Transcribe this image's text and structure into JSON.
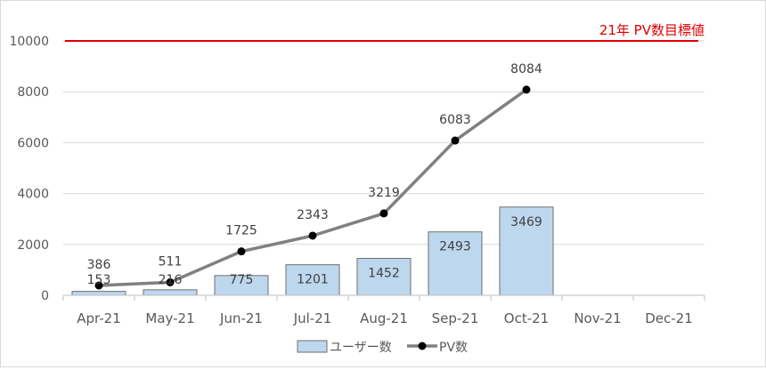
{
  "chart_data": {
    "type": "bar",
    "categories": [
      "Apr-21",
      "May-21",
      "Jun-21",
      "Jul-21",
      "Aug-21",
      "Sep-21",
      "Oct-21",
      "Nov-21",
      "Dec-21"
    ],
    "series": [
      {
        "name": "ユーザー数",
        "kind": "bar",
        "values": [
          153,
          216,
          775,
          1201,
          1452,
          2493,
          3469,
          null,
          null
        ],
        "color": "#bdd7ee",
        "stroke": "#6f6f6f"
      },
      {
        "name": "PV数",
        "kind": "line",
        "values": [
          386,
          511,
          1725,
          2343,
          3219,
          6083,
          8084,
          null,
          null
        ],
        "color": "#808080",
        "marker_color": "#000000"
      }
    ],
    "ylim": [
      0,
      10000
    ],
    "yticks": [
      0,
      2000,
      4000,
      6000,
      8000,
      10000
    ],
    "ytick_labels": [
      "0",
      "2000",
      "4000",
      "6000",
      "8000",
      "10000"
    ],
    "grid": true,
    "legend": "bottom",
    "reference_line": {
      "value": 10000,
      "label": "21年 PV数目標値",
      "color": "#e00000"
    }
  }
}
